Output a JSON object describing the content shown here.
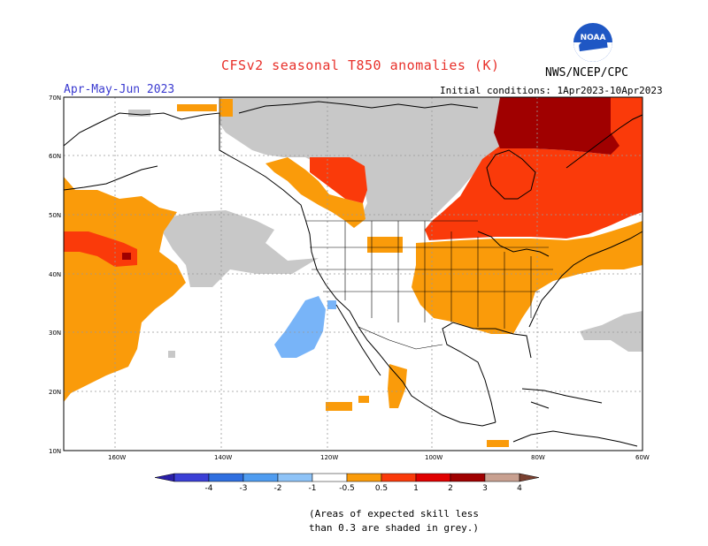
{
  "header": {
    "title": "CFSv2 seasonal T850 anomalies (K)",
    "org": "NWS/NCEP/CPC",
    "period": "Apr-May-Jun 2023",
    "initial_conditions": "Initial conditions: 1Apr2023-10Apr2023",
    "logo_text": "NOAA"
  },
  "axes": {
    "lat_labels": [
      "70N",
      "60N",
      "50N",
      "40N",
      "30N",
      "20N",
      "10N"
    ],
    "lon_labels": [
      "160W",
      "140W",
      "120W",
      "100W",
      "80W",
      "60W"
    ]
  },
  "colorbar": {
    "labels": [
      "-4",
      "-3",
      "-2",
      "-1",
      "-0.5",
      "0.5",
      "1",
      "2",
      "3",
      "4"
    ],
    "colors": [
      "#2a1fa8",
      "#3b3fd6",
      "#2f6fe0",
      "#4f9cf0",
      "#8ec3f7",
      "#ffffff",
      "#fa9b0a",
      "#fa3a0a",
      "#e00000",
      "#a00000",
      "#c8a090",
      "#7a4030"
    ]
  },
  "note": {
    "line1": "(Areas of expected skill less",
    "line2": "than 0.3 are shaded in grey.)"
  },
  "palette": {
    "grey": "#c8c8c8",
    "orange": "#fa9b0a",
    "red": "#fa3a0a",
    "darkred": "#a00000",
    "lightblue": "#78b4f8"
  }
}
